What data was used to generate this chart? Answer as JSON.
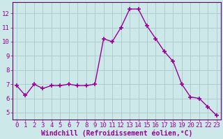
{
  "x": [
    0,
    1,
    2,
    3,
    4,
    5,
    6,
    7,
    8,
    9,
    10,
    11,
    12,
    13,
    14,
    15,
    16,
    17,
    18,
    19,
    20,
    21,
    22,
    23
  ],
  "y": [
    6.9,
    6.2,
    7.0,
    6.7,
    6.9,
    6.9,
    7.0,
    6.9,
    6.9,
    7.0,
    10.2,
    10.0,
    11.0,
    12.3,
    12.3,
    11.1,
    10.2,
    9.3,
    8.6,
    7.0,
    6.1,
    6.0,
    5.4,
    4.8
  ],
  "line_color": "#990099",
  "marker": "+",
  "marker_size": 4,
  "marker_lw": 1.2,
  "bg_color": "#cce8e8",
  "grid_color": "#b0cccc",
  "xlabel": "Windchill (Refroidissement éolien,°C)",
  "ylabel_ticks": [
    5,
    6,
    7,
    8,
    9,
    10,
    11,
    12
  ],
  "ylim": [
    4.5,
    12.8
  ],
  "xlim": [
    -0.5,
    23.5
  ],
  "xticks": [
    0,
    1,
    2,
    3,
    4,
    5,
    6,
    7,
    8,
    9,
    10,
    11,
    12,
    13,
    14,
    15,
    16,
    17,
    18,
    19,
    20,
    21,
    22,
    23
  ],
  "xlabel_fontsize": 7.0,
  "tick_fontsize": 6.5,
  "line_width": 1.0,
  "spine_color": "#660066"
}
